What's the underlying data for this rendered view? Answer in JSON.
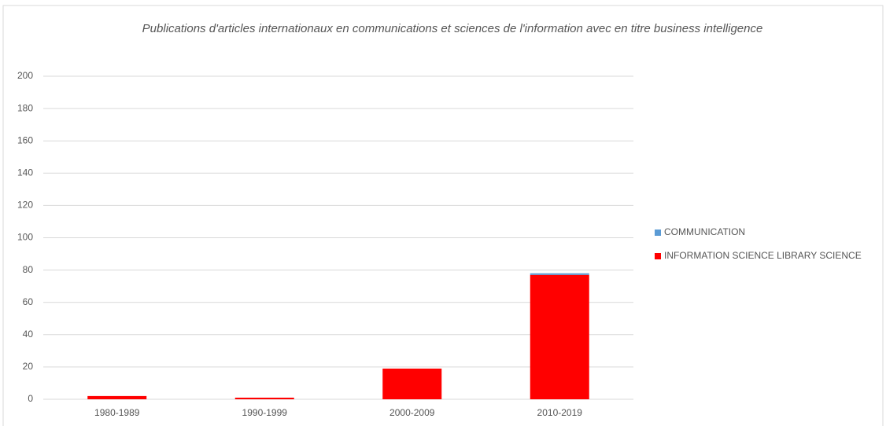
{
  "chart_data": {
    "type": "stacked_bar",
    "title": "Publications d'articles internationaux en communications et sciences de l'information avec en titre business intelligence",
    "categories": [
      "1980-1989",
      "1990-1999",
      "2000-2009",
      "2010-2019"
    ],
    "series": [
      {
        "name": "INFORMATION SCIENCE LIBRARY SCIENCE",
        "color": "#ff0000",
        "values": [
          2,
          1,
          19,
          77
        ]
      },
      {
        "name": "COMMUNICATION",
        "color": "#5b9bd5",
        "values": [
          0,
          0,
          0,
          1
        ]
      }
    ],
    "ylim": [
      0,
      200
    ],
    "yticks": [
      0,
      20,
      40,
      60,
      80,
      100,
      120,
      140,
      160,
      180,
      200
    ],
    "grid": true,
    "legend": "right"
  }
}
